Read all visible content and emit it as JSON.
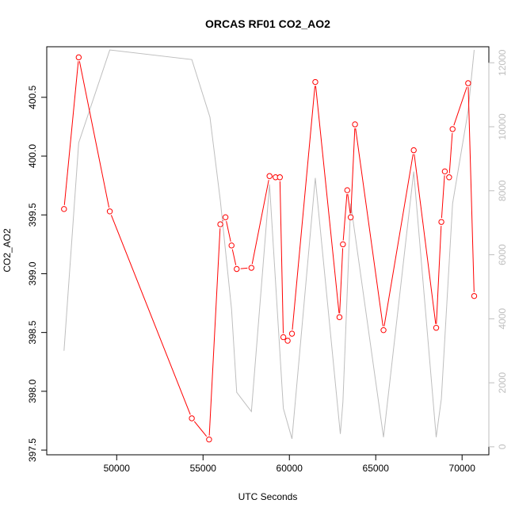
{
  "chart_data": {
    "type": "line",
    "title": "ORCAS RF01 CO2_AO2",
    "xlabel": "UTC Seconds",
    "ylabel": "CO2_AO2",
    "xlim": [
      45950,
      71550
    ],
    "ylim": [
      397.46,
      400.93
    ],
    "y2lim": [
      -250,
      12500
    ],
    "x_ticks": [
      50000,
      55000,
      60000,
      65000,
      70000
    ],
    "y_ticks": [
      397.5,
      398.0,
      398.5,
      399.0,
      399.5,
      400.0,
      400.5
    ],
    "y2_ticks": [
      0,
      2000,
      4000,
      6000,
      8000,
      10000,
      12000
    ],
    "colors": {
      "primary": "#ff0000",
      "secondary": "#bebebe",
      "axis": "#000000",
      "secondary_axis_text": "#bebebe"
    },
    "series": [
      {
        "axis": "left",
        "style": "line-with-open-circles",
        "color": "#ff0000",
        "points": [
          [
            46950,
            399.55
          ],
          [
            47800,
            400.84
          ],
          [
            49600,
            399.53
          ],
          [
            54350,
            397.77
          ],
          [
            55350,
            397.59
          ],
          [
            56000,
            399.42
          ],
          [
            56300,
            399.48
          ],
          [
            56650,
            399.24
          ],
          [
            56950,
            399.04
          ],
          [
            57800,
            399.05
          ],
          [
            58850,
            399.83
          ],
          [
            59200,
            399.82
          ],
          [
            59450,
            399.82
          ],
          [
            59650,
            398.46
          ],
          [
            59900,
            398.43
          ],
          [
            60150,
            398.49
          ],
          [
            61500,
            400.63
          ],
          [
            62900,
            398.63
          ],
          [
            63100,
            399.25
          ],
          [
            63350,
            399.71
          ],
          [
            63550,
            399.48
          ],
          [
            63800,
            400.27
          ],
          [
            65450,
            398.52
          ],
          [
            67200,
            400.05
          ],
          [
            68500,
            398.54
          ],
          [
            68800,
            399.44
          ],
          [
            69000,
            399.87
          ],
          [
            69250,
            399.82
          ],
          [
            69450,
            400.23
          ],
          [
            70350,
            400.62
          ],
          [
            70700,
            398.81
          ]
        ]
      },
      {
        "axis": "right",
        "style": "line",
        "color": "#bebebe",
        "points": [
          [
            46950,
            3000
          ],
          [
            47800,
            9500
          ],
          [
            49600,
            12400
          ],
          [
            54350,
            12100
          ],
          [
            55400,
            10300
          ],
          [
            56000,
            7700
          ],
          [
            56650,
            4300
          ],
          [
            56950,
            1700
          ],
          [
            57800,
            1100
          ],
          [
            58850,
            8200
          ],
          [
            59650,
            1200
          ],
          [
            60150,
            250
          ],
          [
            61500,
            8400
          ],
          [
            62950,
            400
          ],
          [
            63100,
            1400
          ],
          [
            63550,
            7600
          ],
          [
            65450,
            300
          ],
          [
            67200,
            8600
          ],
          [
            68500,
            300
          ],
          [
            68800,
            1500
          ],
          [
            69450,
            7600
          ],
          [
            70350,
            10500
          ],
          [
            70700,
            12400
          ]
        ]
      }
    ]
  }
}
